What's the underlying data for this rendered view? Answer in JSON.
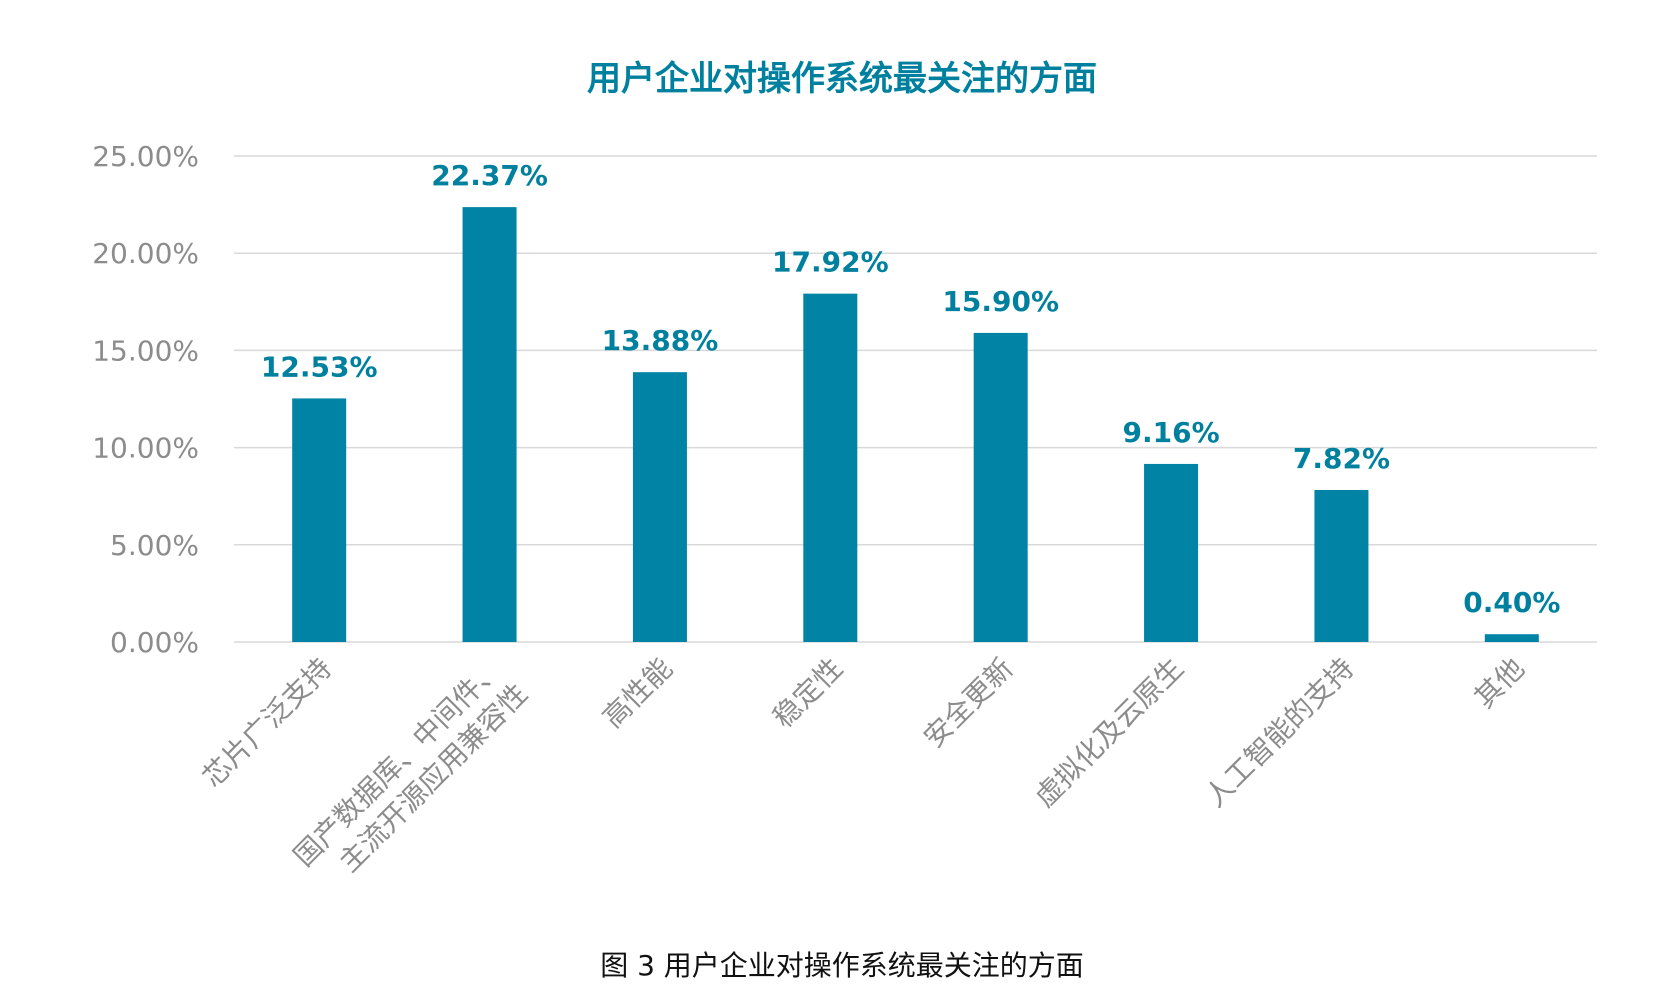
{
  "chart_data": {
    "type": "bar",
    "title": "用户企业对操作系统最关注的方面",
    "caption": "图 3 用户企业对操作系统最关注的方面",
    "categories": [
      [
        "芯片广泛支持"
      ],
      [
        "国产数据库、中间件、",
        "主流开源应用兼容性"
      ],
      [
        "高性能"
      ],
      [
        "稳定性"
      ],
      [
        "安全更新"
      ],
      [
        "虚拟化及云原生"
      ],
      [
        "人工智能的支持"
      ],
      [
        "其他"
      ]
    ],
    "values": [
      12.53,
      22.37,
      13.88,
      17.92,
      15.9,
      9.16,
      7.82,
      0.4
    ],
    "data_labels": [
      "12.53%",
      "22.37%",
      "13.88%",
      "17.92%",
      "15.90%",
      "9.16%",
      "7.82%",
      "0.40%"
    ],
    "yticks": [
      "0.00%",
      "5.00%",
      "10.00%",
      "15.00%",
      "20.00%",
      "25.00%"
    ],
    "ylim": [
      0,
      25
    ],
    "xlabel": "",
    "ylabel": "",
    "grid": true,
    "legend": "none",
    "colors": {
      "bar": "#0083a4",
      "label": "#00809f",
      "grid": "#d9d9d9"
    }
  }
}
